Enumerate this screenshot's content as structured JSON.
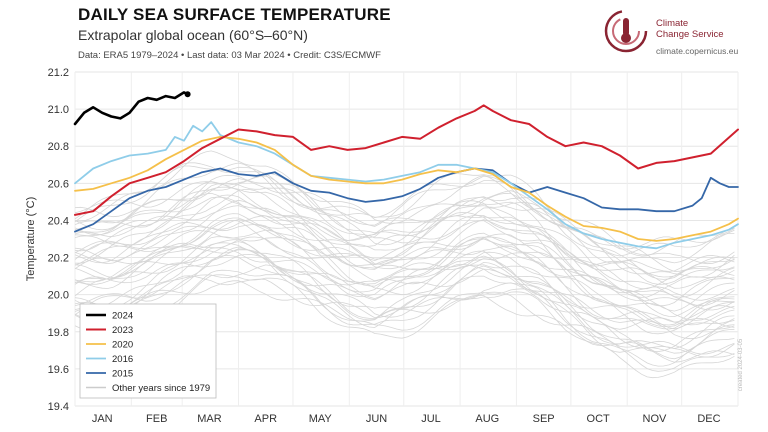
{
  "header": {
    "title": "DAILY SEA SURFACE TEMPERATURE",
    "subtitle": "Extrapolar global ocean (60°S–60°N)",
    "meta": "Data: ERA5 1979–2024 • Last data: 03 Mar 2024 • Credit: C3S/ECMWF"
  },
  "logo": {
    "line1": "Climate",
    "line2": "Change Service",
    "url": "climate.copernicus.eu",
    "color": "#8a2432"
  },
  "watermark": "created 2024-03-05",
  "chart_data": {
    "type": "line",
    "ylabel": "Temperature (°C)",
    "xlabel": "",
    "ylim": [
      19.4,
      21.2
    ],
    "yticks": [
      19.4,
      19.6,
      19.8,
      20.0,
      20.2,
      20.4,
      20.6,
      20.8,
      21.0,
      21.2
    ],
    "xlim": [
      0,
      365
    ],
    "month_labels": [
      "JAN",
      "FEB",
      "MAR",
      "APR",
      "MAY",
      "JUN",
      "JUL",
      "AUG",
      "SEP",
      "OCT",
      "NOV",
      "DEC"
    ],
    "month_centers": [
      15,
      45,
      74,
      105,
      135,
      166,
      196,
      227,
      258,
      288,
      319,
      349
    ],
    "grid": true,
    "legend_position": "bottom-left",
    "series": [
      {
        "name": "2024",
        "color": "#000000",
        "width": 2.6,
        "x": [
          0,
          5,
          10,
          15,
          20,
          25,
          30,
          35,
          40,
          45,
          50,
          55,
          60,
          62
        ],
        "y": [
          20.92,
          20.98,
          21.01,
          20.98,
          20.96,
          20.95,
          20.98,
          21.04,
          21.06,
          21.05,
          21.07,
          21.06,
          21.09,
          21.08
        ]
      },
      {
        "name": "2023",
        "color": "#d0202e",
        "width": 2.0,
        "x": [
          0,
          10,
          20,
          30,
          40,
          50,
          60,
          70,
          80,
          90,
          100,
          110,
          120,
          130,
          140,
          150,
          160,
          170,
          180,
          190,
          200,
          210,
          220,
          225,
          230,
          240,
          250,
          260,
          270,
          280,
          290,
          300,
          310,
          320,
          330,
          340,
          350,
          358,
          365
        ],
        "y": [
          20.43,
          20.45,
          20.53,
          20.6,
          20.63,
          20.66,
          20.72,
          20.79,
          20.84,
          20.89,
          20.88,
          20.86,
          20.85,
          20.78,
          20.8,
          20.78,
          20.79,
          20.82,
          20.85,
          20.84,
          20.9,
          20.95,
          20.99,
          21.02,
          20.99,
          20.94,
          20.92,
          20.85,
          20.8,
          20.82,
          20.8,
          20.75,
          20.68,
          20.71,
          20.72,
          20.74,
          20.76,
          20.83,
          20.89
        ]
      },
      {
        "name": "2020",
        "color": "#f5c04a",
        "width": 1.8,
        "x": [
          0,
          10,
          20,
          30,
          40,
          50,
          60,
          70,
          80,
          90,
          100,
          110,
          120,
          130,
          140,
          150,
          160,
          170,
          180,
          190,
          200,
          210,
          220,
          230,
          240,
          250,
          260,
          270,
          280,
          290,
          300,
          310,
          320,
          330,
          340,
          350,
          360,
          365
        ],
        "y": [
          20.56,
          20.57,
          20.6,
          20.63,
          20.67,
          20.73,
          20.78,
          20.83,
          20.85,
          20.84,
          20.82,
          20.78,
          20.7,
          20.64,
          20.62,
          20.61,
          20.6,
          20.6,
          20.62,
          20.65,
          20.67,
          20.66,
          20.68,
          20.65,
          20.58,
          20.55,
          20.48,
          20.42,
          20.37,
          20.36,
          20.34,
          20.3,
          20.29,
          20.3,
          20.32,
          20.34,
          20.38,
          20.41
        ]
      },
      {
        "name": "2016",
        "color": "#8fcde9",
        "width": 1.8,
        "x": [
          0,
          10,
          20,
          30,
          40,
          50,
          55,
          60,
          65,
          70,
          75,
          80,
          90,
          100,
          110,
          120,
          130,
          140,
          150,
          160,
          170,
          180,
          190,
          200,
          210,
          220,
          230,
          240,
          250,
          260,
          270,
          280,
          290,
          300,
          310,
          320,
          330,
          340,
          350,
          360,
          365
        ],
        "y": [
          20.6,
          20.68,
          20.72,
          20.75,
          20.76,
          20.78,
          20.85,
          20.83,
          20.91,
          20.88,
          20.93,
          20.86,
          20.82,
          20.8,
          20.76,
          20.7,
          20.64,
          20.63,
          20.62,
          20.61,
          20.62,
          20.64,
          20.66,
          20.7,
          20.7,
          20.68,
          20.66,
          20.6,
          20.53,
          20.46,
          20.38,
          20.33,
          20.3,
          20.28,
          20.26,
          20.25,
          20.28,
          20.3,
          20.32,
          20.35,
          20.38
        ]
      },
      {
        "name": "2015",
        "color": "#3567a8",
        "width": 1.8,
        "x": [
          0,
          10,
          20,
          30,
          40,
          50,
          60,
          70,
          80,
          90,
          100,
          110,
          120,
          130,
          140,
          150,
          160,
          170,
          180,
          190,
          200,
          210,
          220,
          230,
          240,
          250,
          260,
          270,
          280,
          290,
          300,
          310,
          320,
          330,
          340,
          345,
          350,
          355,
          360,
          365
        ],
        "y": [
          20.34,
          20.38,
          20.45,
          20.52,
          20.56,
          20.58,
          20.62,
          20.66,
          20.68,
          20.65,
          20.64,
          20.66,
          20.6,
          20.56,
          20.55,
          20.52,
          20.5,
          20.51,
          20.53,
          20.57,
          20.63,
          20.66,
          20.68,
          20.67,
          20.6,
          20.55,
          20.58,
          20.55,
          20.52,
          20.47,
          20.46,
          20.46,
          20.45,
          20.45,
          20.48,
          20.52,
          20.63,
          20.6,
          20.58,
          20.58
        ]
      }
    ],
    "other_years": {
      "name": "Other years since 1979",
      "color": "#d6d6d6",
      "count": 40,
      "x": [
        0,
        20,
        40,
        60,
        75,
        90,
        105,
        120,
        135,
        150,
        165,
        180,
        195,
        210,
        225,
        240,
        255,
        270,
        285,
        300,
        315,
        330,
        345,
        365
      ],
      "mean": [
        20.24,
        20.27,
        20.33,
        20.42,
        20.47,
        20.48,
        20.45,
        20.38,
        20.3,
        20.24,
        20.2,
        20.24,
        20.3,
        20.36,
        20.4,
        20.37,
        20.3,
        20.2,
        20.12,
        20.06,
        20.03,
        20.02,
        20.05,
        20.1
      ],
      "spread_bottom": -0.4,
      "spread_top": 0.23
    }
  }
}
